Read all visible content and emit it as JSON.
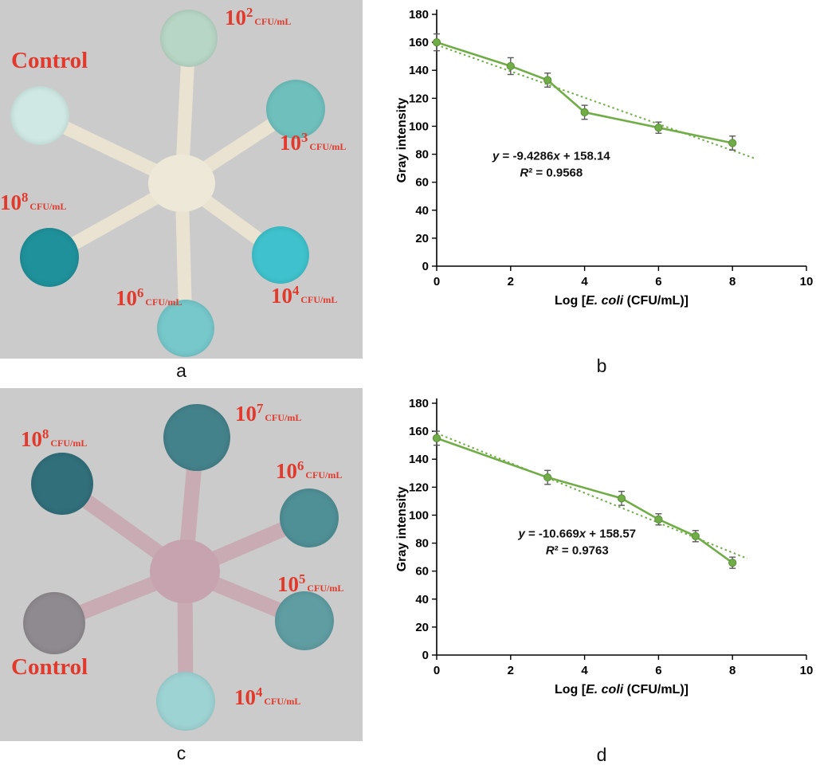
{
  "figure": {
    "panel_labels": {
      "a": "a",
      "b": "b",
      "c": "c",
      "d": "d"
    }
  },
  "devices": [
    {
      "name": "colorimetric-paper-device-1",
      "background_color": "#cbcbcb",
      "arm_color": "#eae3d1",
      "center_color": "#eee8d8",
      "label_color": "#e13a2c",
      "pads": [
        {
          "key": "1e2",
          "color": "#b7d6c5",
          "label": {
            "base": "10",
            "exp": "2",
            "unit": "CFU/mL"
          }
        },
        {
          "key": "control",
          "color": "#cfe8e3",
          "label": {
            "text": "Control"
          }
        },
        {
          "key": "1e3",
          "color": "#6fc0bd",
          "label": {
            "base": "10",
            "exp": "3",
            "unit": "CFU/mL"
          }
        },
        {
          "key": "1e8",
          "color": "#1f919b",
          "label": {
            "base": "10",
            "exp": "8",
            "unit": "CFU/mL"
          }
        },
        {
          "key": "1e4",
          "color": "#3fc2cd",
          "label": {
            "base": "10",
            "exp": "4",
            "unit": "CFU/mL"
          }
        },
        {
          "key": "1e6",
          "color": "#76c8cb",
          "label": {
            "base": "10",
            "exp": "6",
            "unit": "CFU/mL"
          }
        }
      ]
    },
    {
      "name": "colorimetric-paper-device-2",
      "background_color": "#cbcbcb",
      "arm_color": "#c9abb4",
      "center_color": "#c6a3ae",
      "label_color": "#e13a2c",
      "pads": [
        {
          "key": "1e7",
          "color": "#44828b",
          "label": {
            "base": "10",
            "exp": "7",
            "unit": "CFU/mL"
          }
        },
        {
          "key": "1e8",
          "color": "#316f7b",
          "label": {
            "base": "10",
            "exp": "8",
            "unit": "CFU/mL"
          }
        },
        {
          "key": "1e6",
          "color": "#4f8f96",
          "label": {
            "base": "10",
            "exp": "6",
            "unit": "CFU/mL"
          }
        },
        {
          "key": "1e5",
          "color": "#5f9da2",
          "label": {
            "base": "10",
            "exp": "5",
            "unit": "CFU/mL"
          }
        },
        {
          "key": "control",
          "color": "#8f8a8f",
          "label": {
            "text": "Control"
          }
        },
        {
          "key": "1e4",
          "color": "#9ed3d3",
          "label": {
            "base": "10",
            "exp": "4",
            "unit": "CFU/mL"
          }
        }
      ]
    }
  ],
  "chart_data": [
    {
      "type": "line",
      "title": "",
      "ylabel": "Gray intensity",
      "xlabel_parts": [
        {
          "text": "Log [",
          "italic": false
        },
        {
          "text": "E. coli",
          "italic": true
        },
        {
          "text": " (CFU/mL)]",
          "italic": false
        }
      ],
      "xlim": [
        0,
        10
      ],
      "ylim": [
        0,
        180
      ],
      "xticks": [
        0,
        2,
        4,
        6,
        8,
        10
      ],
      "yticks": [
        0,
        20,
        40,
        60,
        80,
        100,
        120,
        140,
        160,
        180
      ],
      "x": [
        0,
        2,
        3,
        4,
        6,
        8
      ],
      "y": [
        160,
        143,
        133,
        110,
        99,
        88
      ],
      "yerr": [
        6,
        6,
        5,
        5,
        4,
        5
      ],
      "trendline": {
        "slope": -9.4286,
        "intercept": 158.14,
        "x_start": 0,
        "x_end": 8.6,
        "style": "dotted"
      },
      "equation_parts": [
        {
          "text": "y",
          "italic": true
        },
        {
          "text": " = -9.4286",
          "italic": false
        },
        {
          "text": "x",
          "italic": true
        },
        {
          "text": " + 158.14",
          "italic": false
        }
      ],
      "r2_parts": [
        {
          "text": "R",
          "italic": true
        },
        {
          "text": "²",
          "italic": false
        },
        {
          "text": " = 0.9568",
          "italic": false
        }
      ],
      "annotation_pos": {
        "x": 3.1,
        "y": 76
      },
      "line_color": "#71ad47",
      "marker_edge": "#588f38",
      "error_color": "#5a5a5a",
      "grid": false,
      "legend": "none"
    },
    {
      "type": "line",
      "title": "",
      "ylabel": "Gray intensity",
      "xlabel_parts": [
        {
          "text": "Log [",
          "italic": false
        },
        {
          "text": "E. coli",
          "italic": true
        },
        {
          "text": " (CFU/mL)]",
          "italic": false
        }
      ],
      "xlim": [
        0,
        10
      ],
      "ylim": [
        0,
        180
      ],
      "xticks": [
        0,
        2,
        4,
        6,
        8,
        10
      ],
      "yticks": [
        0,
        20,
        40,
        60,
        80,
        100,
        120,
        140,
        160,
        180
      ],
      "x": [
        0,
        3,
        5,
        6,
        7,
        8
      ],
      "y": [
        155,
        127,
        112,
        97,
        85,
        66
      ],
      "yerr": [
        5,
        5,
        5,
        4,
        4,
        4
      ],
      "trendline": {
        "slope": -10.669,
        "intercept": 158.57,
        "x_start": 0,
        "x_end": 8.4,
        "style": "dotted"
      },
      "equation_parts": [
        {
          "text": "y",
          "italic": true
        },
        {
          "text": " = -10.669",
          "italic": false
        },
        {
          "text": "x",
          "italic": true
        },
        {
          "text": " + 158.57",
          "italic": false
        }
      ],
      "r2_parts": [
        {
          "text": "R",
          "italic": true
        },
        {
          "text": "²",
          "italic": false
        },
        {
          "text": " = 0.9763",
          "italic": false
        }
      ],
      "annotation_pos": {
        "x": 3.8,
        "y": 84
      },
      "line_color": "#71ad47",
      "marker_edge": "#588f38",
      "error_color": "#5a5a5a",
      "grid": false,
      "legend": "none"
    }
  ]
}
